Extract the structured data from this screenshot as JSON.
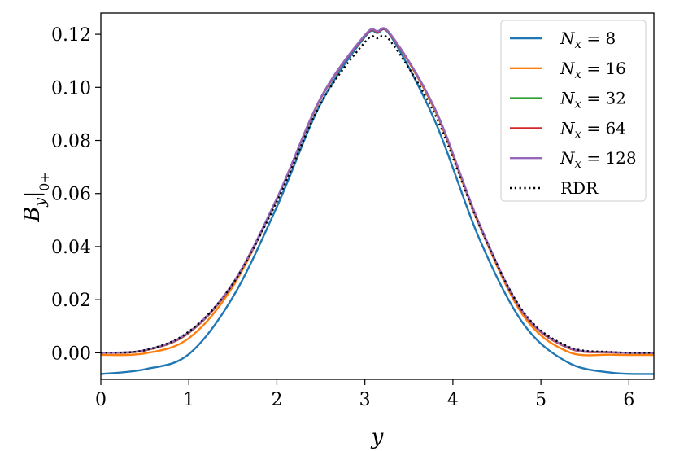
{
  "chart_data": {
    "type": "line",
    "xlabel": "y",
    "ylabel": "B_y|0+",
    "ylabel_parts": {
      "base": "B",
      "sub_var": "y",
      "sub_eval": "0+"
    },
    "xlim": [
      0,
      6.2832
    ],
    "ylim": [
      -0.01,
      0.128
    ],
    "x_ticks": [
      0,
      1,
      2,
      3,
      4,
      5,
      6
    ],
    "x_tick_labels": [
      "0",
      "1",
      "2",
      "3",
      "4",
      "5",
      "6"
    ],
    "y_ticks": [
      0.0,
      0.02,
      0.04,
      0.06,
      0.08,
      0.1,
      0.12
    ],
    "y_tick_labels": [
      "0.00",
      "0.02",
      "0.04",
      "0.06",
      "0.08",
      "0.10",
      "0.12"
    ],
    "grid": false,
    "legend_position": "top-right",
    "x": [
      0,
      0.5,
      1.0,
      1.5,
      2.0,
      2.5,
      3.0,
      3.1416,
      3.3,
      3.8,
      4.3,
      4.8,
      5.3,
      5.8,
      6.2832
    ],
    "series": [
      {
        "name": "N_x = 8",
        "label_parts": {
          "var": "N",
          "sub": "x",
          "rhs": "= 8"
        },
        "color": "#1f77b4",
        "style": "solid",
        "values": [
          -0.008,
          -0.0062,
          -0.0005,
          0.021,
          0.055,
          0.094,
          0.119,
          0.1205,
          0.119,
          0.087,
          0.043,
          0.011,
          -0.0035,
          -0.0075,
          -0.008
        ]
      },
      {
        "name": "N_x = 16",
        "label_parts": {
          "var": "N",
          "sub": "x",
          "rhs": "= 16"
        },
        "color": "#ff7f0e",
        "style": "solid",
        "values": [
          -0.0008,
          -0.0002,
          0.0055,
          0.025,
          0.058,
          0.096,
          0.1195,
          0.121,
          0.1195,
          0.091,
          0.048,
          0.014,
          0.0005,
          -0.0007,
          -0.0008
        ]
      },
      {
        "name": "N_x = 32",
        "label_parts": {
          "var": "N",
          "sub": "x",
          "rhs": "= 32"
        },
        "color": "#2ca02c",
        "style": "solid",
        "values": [
          0.0,
          0.0009,
          0.0075,
          0.026,
          0.058,
          0.096,
          0.1195,
          0.121,
          0.1195,
          0.0915,
          0.0485,
          0.015,
          0.002,
          0.0002,
          0.0
        ]
      },
      {
        "name": "N_x = 64",
        "label_parts": {
          "var": "N",
          "sub": "x",
          "rhs": "= 64"
        },
        "color": "#d62728",
        "style": "solid",
        "values": [
          0.0,
          0.0009,
          0.0076,
          0.026,
          0.058,
          0.096,
          0.1195,
          0.121,
          0.1195,
          0.0915,
          0.0485,
          0.015,
          0.002,
          0.0002,
          0.0
        ]
      },
      {
        "name": "N_x = 128",
        "label_parts": {
          "var": "N",
          "sub": "x",
          "rhs": "= 128"
        },
        "color": "#9467bd",
        "style": "solid",
        "values": [
          0.0,
          0.001,
          0.0078,
          0.0262,
          0.0582,
          0.0962,
          0.1197,
          0.1212,
          0.1197,
          0.0917,
          0.0487,
          0.0152,
          0.0022,
          0.0002,
          0.0
        ]
      },
      {
        "name": "RDR",
        "label_parts": {
          "var": "",
          "sub": "",
          "rhs": "RDR"
        },
        "color": "#000000",
        "style": "dotted",
        "values": [
          0.0,
          0.001,
          0.008,
          0.026,
          0.057,
          0.094,
          0.117,
          0.1185,
          0.117,
          0.0895,
          0.048,
          0.0155,
          0.0025,
          0.0003,
          0.0
        ]
      }
    ]
  }
}
